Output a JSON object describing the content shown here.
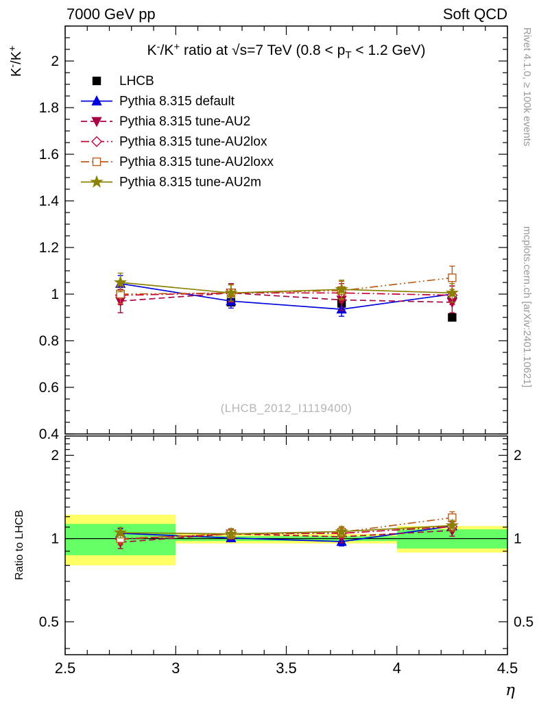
{
  "header": {
    "left": "7000 GeV pp",
    "right": "Soft QCD"
  },
  "side_notes": {
    "top_right": "Rivet 4.1.0, ≥ 100k events",
    "bottom_right": "mcplots.cern.ch [arXiv:2401.10621]"
  },
  "watermark": "(LHCB_2012_I1119400)",
  "chart_data": {
    "type": "line",
    "title_plain": "K-/K+ ratio at √s=7 TeV (0.8 < pT < 1.2 GeV)",
    "title_parts": [
      {
        "t": "K"
      },
      {
        "t": "-",
        "sup": true
      },
      {
        "t": "/K"
      },
      {
        "t": "+",
        "sup": true
      },
      {
        "t": " ratio at √s=7 TeV (0.8 < p"
      },
      {
        "t": "T",
        "sub": true
      },
      {
        "t": " < 1.2 GeV)"
      }
    ],
    "xlabel": "η",
    "xlim": [
      2.5,
      4.5
    ],
    "x_major_ticks": [
      2.5,
      3,
      3.5,
      4,
      4.5
    ],
    "x_tick_labels": [
      "2.5",
      "3",
      "3.5",
      "4",
      "4.5"
    ],
    "x_minor_step": 0.1,
    "x": [
      2.75,
      3.25,
      3.75,
      4.25
    ],
    "main_panel": {
      "ylabel_plain": "K-/K+",
      "ylabel_parts": [
        {
          "t": "K"
        },
        {
          "t": "-",
          "sup": true
        },
        {
          "t": "/K"
        },
        {
          "t": "+",
          "sup": true
        }
      ],
      "scale": "linear",
      "ylim": [
        0.4,
        2.15
      ],
      "y_major_ticks": [
        0.4,
        0.6,
        0.8,
        1,
        1.2,
        1.4,
        1.6,
        1.8,
        2
      ],
      "y_tick_labels": [
        "0.4",
        "0.6",
        "0.8",
        "1",
        "1.2",
        "1.4",
        "1.6",
        "1.8",
        "2"
      ],
      "y_minor_step": 0.05,
      "series": [
        {
          "name": "LHCB",
          "color": "#000000",
          "marker": "square",
          "filled": true,
          "line": "none",
          "values": [
            1.0,
            0.965,
            0.96,
            0.9
          ],
          "errors": [
            0.02,
            0.015,
            0.015,
            0.015
          ]
        },
        {
          "name": "Pythia 8.315 default",
          "color": "#0000dd",
          "marker": "triangle-up",
          "filled": true,
          "line": "solid",
          "values": [
            1.045,
            0.97,
            0.935,
            1.0
          ],
          "errors": [
            0.035,
            0.03,
            0.03,
            0.035
          ]
        },
        {
          "name": "Pythia 8.315 tune-AU2",
          "color": "#aa0044",
          "marker": "triangle-down",
          "filled": true,
          "line": "dashed",
          "values": [
            0.97,
            1.005,
            0.975,
            0.965
          ],
          "errors": [
            0.05,
            0.04,
            0.045,
            0.045
          ]
        },
        {
          "name": "Pythia 8.315 tune-AU2lox",
          "color": "#c40034",
          "marker": "diamond",
          "filled": false,
          "line": "dashdot",
          "values": [
            0.995,
            1.005,
            1.005,
            0.995
          ],
          "errors": [
            0.04,
            0.035,
            0.04,
            0.04
          ]
        },
        {
          "name": "Pythia 8.315 tune-AU2loxx",
          "color": "#bf5b17",
          "marker": "square",
          "filled": false,
          "line": "dashdotdot",
          "values": [
            1.0,
            1.005,
            1.015,
            1.07
          ],
          "errors": [
            0.04,
            0.035,
            0.04,
            0.05
          ]
        },
        {
          "name": "Pythia 8.315 tune-AU2m",
          "color": "#8b8000",
          "marker": "star",
          "filled": true,
          "line": "solid",
          "values": [
            1.05,
            1.005,
            1.02,
            1.005
          ],
          "errors": [
            0.04,
            0.035,
            0.04,
            0.04
          ]
        }
      ]
    },
    "ratio_panel": {
      "ylabel": "Ratio to LHCB",
      "scale": "log",
      "ylim": [
        0.38,
        2.35
      ],
      "y_major_ticks": [
        0.5,
        1,
        2
      ],
      "y_tick_labels": [
        "0.5",
        "1",
        "2"
      ],
      "reference_line": 1,
      "band_colors": {
        "outer": "#ffff66",
        "inner": "#66ff66"
      },
      "bands": [
        {
          "x0": 2.5,
          "x1": 3.0,
          "outer": [
            0.8,
            1.22
          ],
          "inner": [
            0.87,
            1.13
          ]
        },
        {
          "x0": 3.0,
          "x1": 3.5,
          "outer": [
            0.96,
            1.04
          ],
          "inner": [
            0.98,
            1.02
          ]
        },
        {
          "x0": 3.5,
          "x1": 4.0,
          "outer": [
            0.96,
            1.04
          ],
          "inner": [
            0.98,
            1.02
          ]
        },
        {
          "x0": 4.0,
          "x1": 4.5,
          "outer": [
            0.89,
            1.11
          ],
          "inner": [
            0.92,
            1.08
          ]
        }
      ],
      "series": [
        {
          "name": "Pythia 8.315 default",
          "values": [
            1.045,
            1.005,
            0.975,
            1.11
          ],
          "errors": [
            0.04,
            0.03,
            0.035,
            0.04
          ]
        },
        {
          "name": "Pythia 8.315 tune-AU2",
          "values": [
            0.97,
            1.04,
            1.015,
            1.07
          ],
          "errors": [
            0.05,
            0.045,
            0.05,
            0.05
          ]
        },
        {
          "name": "Pythia 8.315 tune-AU2lox",
          "values": [
            0.995,
            1.04,
            1.045,
            1.105
          ],
          "errors": [
            0.045,
            0.04,
            0.045,
            0.045
          ]
        },
        {
          "name": "Pythia 8.315 tune-AU2loxx",
          "values": [
            1.0,
            1.04,
            1.055,
            1.19
          ],
          "errors": [
            0.045,
            0.04,
            0.045,
            0.06
          ]
        },
        {
          "name": "Pythia 8.315 tune-AU2m",
          "values": [
            1.05,
            1.04,
            1.06,
            1.115
          ],
          "errors": [
            0.045,
            0.04,
            0.045,
            0.05
          ]
        }
      ]
    },
    "legend": {
      "position": "top-left",
      "entries": [
        "LHCB",
        "Pythia 8.315 default",
        "Pythia 8.315 tune-AU2",
        "Pythia 8.315 tune-AU2lox",
        "Pythia 8.315 tune-AU2loxx",
        "Pythia 8.315 tune-AU2m"
      ]
    }
  }
}
